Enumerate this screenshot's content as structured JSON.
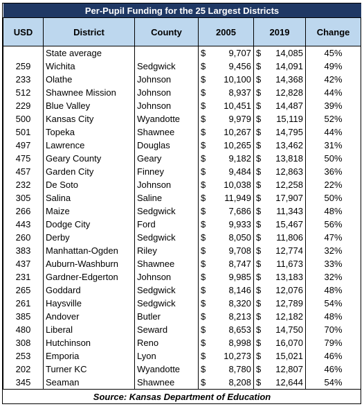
{
  "title": "Per-Pupil Funding for the 25 Largest Districts",
  "headers": [
    "USD",
    "District",
    "County",
    "2005",
    "2019",
    "Change"
  ],
  "currency": "$",
  "rows": [
    {
      "usd": null,
      "district": "State average",
      "county": null,
      "y2005": "9,707",
      "y2019": "14,085",
      "change": "45%"
    },
    {
      "usd": "259",
      "district": "Wichita",
      "county": "Sedgwick",
      "y2005": "9,456",
      "y2019": "14,091",
      "change": "49%"
    },
    {
      "usd": "233",
      "district": "Olathe",
      "county": "Johnson",
      "y2005": "10,100",
      "y2019": "14,368",
      "change": "42%"
    },
    {
      "usd": "512",
      "district": "Shawnee Mission",
      "county": "Johnson",
      "y2005": "8,937",
      "y2019": "12,828",
      "change": "44%"
    },
    {
      "usd": "229",
      "district": "Blue Valley",
      "county": "Johnson",
      "y2005": "10,451",
      "y2019": "14,487",
      "change": "39%"
    },
    {
      "usd": "500",
      "district": "Kansas City",
      "county": "Wyandotte",
      "y2005": "9,979",
      "y2019": "15,119",
      "change": "52%"
    },
    {
      "usd": "501",
      "district": "Topeka",
      "county": "Shawnee",
      "y2005": "10,267",
      "y2019": "14,795",
      "change": "44%"
    },
    {
      "usd": "497",
      "district": "Lawrence",
      "county": "Douglas",
      "y2005": "10,265",
      "y2019": "13,462",
      "change": "31%"
    },
    {
      "usd": "475",
      "district": "Geary County",
      "county": "Geary",
      "y2005": "9,182",
      "y2019": "13,818",
      "change": "50%"
    },
    {
      "usd": "457",
      "district": "Garden City",
      "county": "Finney",
      "y2005": "9,484",
      "y2019": "12,863",
      "change": "36%"
    },
    {
      "usd": "232",
      "district": "De Soto",
      "county": "Johnson",
      "y2005": "10,038",
      "y2019": "12,258",
      "change": "22%"
    },
    {
      "usd": "305",
      "district": "Salina",
      "county": "Saline",
      "y2005": "11,949",
      "y2019": "17,907",
      "change": "50%"
    },
    {
      "usd": "266",
      "district": "Maize",
      "county": "Sedgwick",
      "y2005": "7,686",
      "y2019": "11,343",
      "change": "48%"
    },
    {
      "usd": "443",
      "district": "Dodge City",
      "county": "Ford",
      "y2005": "9,933",
      "y2019": "15,467",
      "change": "56%"
    },
    {
      "usd": "260",
      "district": "Derby",
      "county": "Sedgwick",
      "y2005": "8,050",
      "y2019": "11,806",
      "change": "47%"
    },
    {
      "usd": "383",
      "district": "Manhattan-Ogden",
      "county": "Riley",
      "y2005": "9,708",
      "y2019": "12,774",
      "change": "32%"
    },
    {
      "usd": "437",
      "district": "Auburn-Washburn",
      "county": "Shawnee",
      "y2005": "8,747",
      "y2019": "11,673",
      "change": "33%"
    },
    {
      "usd": "231",
      "district": "Gardner-Edgerton",
      "county": "Johnson",
      "y2005": "9,985",
      "y2019": "13,183",
      "change": "32%"
    },
    {
      "usd": "265",
      "district": "Goddard",
      "county": "Sedgwick",
      "y2005": "8,146",
      "y2019": "12,076",
      "change": "48%"
    },
    {
      "usd": "261",
      "district": "Haysville",
      "county": "Sedgwick",
      "y2005": "8,320",
      "y2019": "12,789",
      "change": "54%"
    },
    {
      "usd": "385",
      "district": "Andover",
      "county": "Butler",
      "y2005": "8,213",
      "y2019": "12,182",
      "change": "48%"
    },
    {
      "usd": "480",
      "district": "Liberal",
      "county": "Seward",
      "y2005": "8,653",
      "y2019": "14,750",
      "change": "70%"
    },
    {
      "usd": "308",
      "district": "Hutchinson",
      "county": "Reno",
      "y2005": "8,998",
      "y2019": "16,070",
      "change": "79%"
    },
    {
      "usd": "253",
      "district": "Emporia",
      "county": "Lyon",
      "y2005": "10,273",
      "y2019": "15,021",
      "change": "46%"
    },
    {
      "usd": "202",
      "district": "Turner KC",
      "county": "Wyandotte",
      "y2005": "8,780",
      "y2019": "12,807",
      "change": "46%"
    },
    {
      "usd": "345",
      "district": "Seaman",
      "county": "Shawnee",
      "y2005": "8,208",
      "y2019": "12,644",
      "change": "54%"
    }
  ],
  "source": "Source:  Kansas Department of Education"
}
